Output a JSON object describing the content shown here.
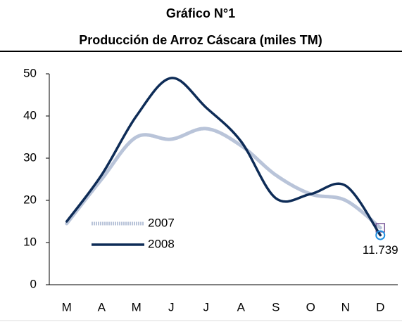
{
  "chart_data": {
    "type": "line",
    "title": "Gráfico N°1",
    "subtitle": "Producción de Arroz Cáscara (miles TM)",
    "categories": [
      "M",
      "A",
      "M",
      "J",
      "J",
      "A",
      "S",
      "O",
      "N",
      "D"
    ],
    "series": [
      {
        "name": "2007",
        "color": "#b9c4d9",
        "values": [
          14.5,
          25,
          35,
          34.5,
          37,
          33,
          26,
          21.5,
          20,
          13.5
        ]
      },
      {
        "name": "2008",
        "color": "#0e2c57",
        "values": [
          15,
          26,
          40,
          49,
          42,
          34,
          20.5,
          21.5,
          23.5,
          11.739
        ],
        "value_labels": [
          null,
          null,
          null,
          null,
          null,
          null,
          null,
          null,
          null,
          "11.739"
        ]
      }
    ],
    "ylim": [
      0,
      50
    ],
    "yticks": [
      0,
      10,
      20,
      30,
      40,
      50
    ],
    "legend": "lower-left"
  }
}
